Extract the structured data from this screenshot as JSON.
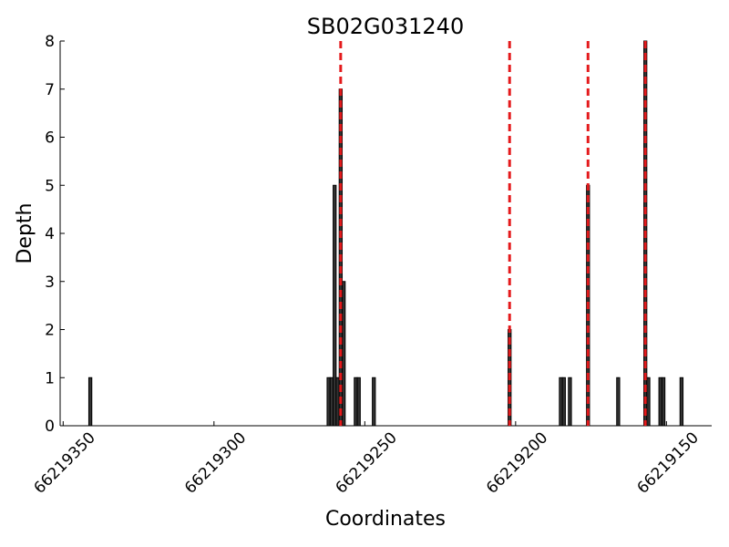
{
  "chart_data": {
    "type": "bar",
    "title": "SB02G031240",
    "x_label": "Coordinates",
    "y_label": "Depth",
    "x": [
      66219341,
      66219262,
      66219261,
      66219260,
      66219259,
      66219258,
      66219257,
      66219253,
      66219252,
      66219247,
      66219202,
      66219185,
      66219184,
      66219182,
      66219176,
      66219166,
      66219157,
      66219156,
      66219152,
      66219151,
      66219145
    ],
    "values": [
      1,
      1,
      1,
      5,
      1,
      7,
      3,
      1,
      1,
      1,
      2,
      1,
      1,
      1,
      5,
      1,
      8,
      1,
      1,
      1,
      1
    ],
    "color": "#333333",
    "vlines": [
      66219258,
      66219202,
      66219176,
      66219157
    ],
    "vline_color": "#e41a1c",
    "xlim": [
      66219351,
      66219135
    ],
    "xticks": [
      66219350,
      66219300,
      66219250,
      66219200,
      66219150
    ],
    "ylim": [
      0,
      8
    ],
    "yticks": [
      0,
      1,
      2,
      3,
      4,
      5,
      6,
      7,
      8
    ]
  }
}
